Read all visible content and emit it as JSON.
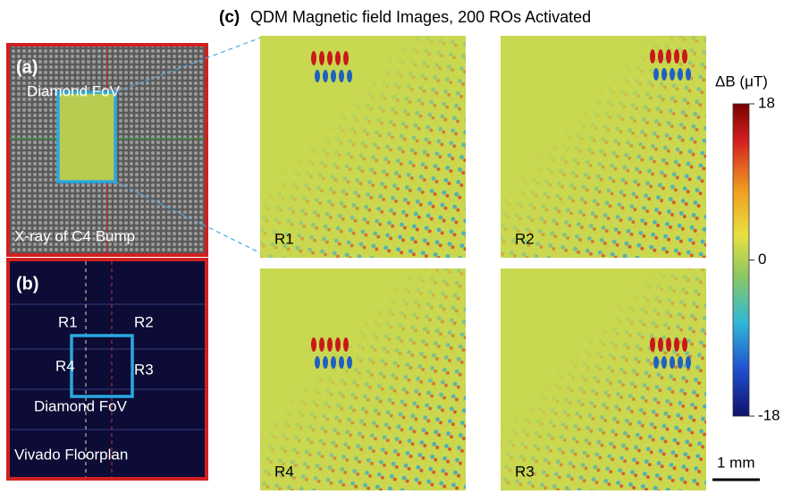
{
  "panel_c": {
    "label": "(c)",
    "title": "QDM Magnetic field Images, 200 ROs Activated",
    "maps": [
      {
        "label": "R1"
      },
      {
        "label": "R2"
      },
      {
        "label": "R4"
      },
      {
        "label": "R3"
      }
    ]
  },
  "panel_a": {
    "label": "(a)",
    "fov_label": "Diamond FoV",
    "caption": "X-ray of C4 Bump"
  },
  "panel_b": {
    "label": "(b)",
    "regions": [
      "R1",
      "R2",
      "R4",
      "R3"
    ],
    "fov_label": "Diamond FoV",
    "caption": "Vivado Floorplan"
  },
  "colorbar": {
    "label": "ΔB (μT)",
    "ticks": [
      18,
      0,
      -18
    ]
  },
  "scale_bar": {
    "label": "1 mm"
  }
}
